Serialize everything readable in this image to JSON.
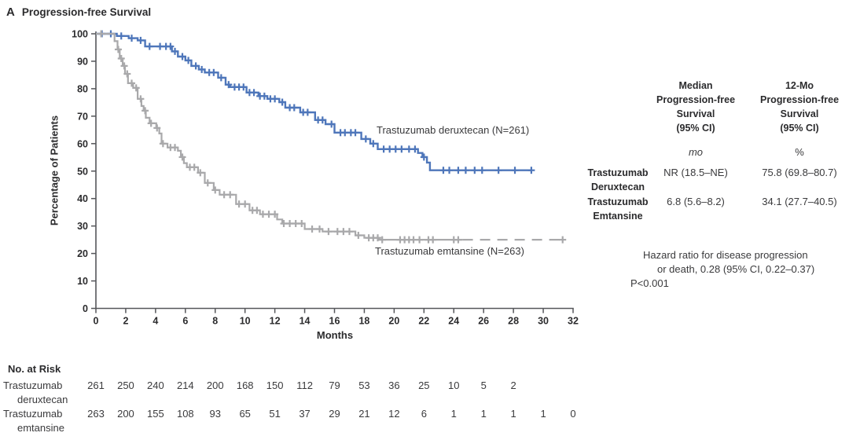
{
  "title": {
    "panel_letter": "A",
    "text": "Progression-free Survival"
  },
  "chart_data": {
    "type": "line",
    "subtype": "kaplan-meier-step",
    "title": "Progression-free Survival",
    "xlabel": "Months",
    "ylabel": "Percentage of Patients",
    "xlim": [
      0,
      32
    ],
    "ylim": [
      0,
      100
    ],
    "x_ticks": [
      0,
      2,
      4,
      6,
      8,
      10,
      12,
      14,
      16,
      18,
      20,
      22,
      24,
      26,
      28,
      30,
      32
    ],
    "y_ticks": [
      0,
      10,
      20,
      30,
      40,
      50,
      60,
      70,
      80,
      90,
      100
    ],
    "grid": false,
    "axis_color": "#55565a",
    "series": [
      {
        "name": "Trastuzumab deruxtecan",
        "label": "Trastuzumab deruxtecan (N=261)",
        "n": 261,
        "color": "#4e76ba",
        "dash_from": null,
        "steps": [
          [
            0,
            100
          ],
          [
            1.4,
            100
          ],
          [
            1.4,
            99.2
          ],
          [
            2.2,
            99.2
          ],
          [
            2.2,
            98.4
          ],
          [
            2.8,
            98.4
          ],
          [
            2.8,
            97.6
          ],
          [
            3.3,
            97.6
          ],
          [
            3.3,
            95.4
          ],
          [
            5.1,
            95.4
          ],
          [
            5.1,
            93.6
          ],
          [
            5.5,
            93.6
          ],
          [
            5.5,
            91.7
          ],
          [
            6,
            91.7
          ],
          [
            6,
            90.3
          ],
          [
            6.4,
            90.3
          ],
          [
            6.4,
            88.3
          ],
          [
            6.9,
            88.3
          ],
          [
            6.9,
            87
          ],
          [
            7.3,
            87
          ],
          [
            7.3,
            85.9
          ],
          [
            8.2,
            85.9
          ],
          [
            8.2,
            84
          ],
          [
            8.7,
            84
          ],
          [
            8.7,
            81.5
          ],
          [
            9,
            81.5
          ],
          [
            9,
            80.6
          ],
          [
            10.1,
            80.6
          ],
          [
            10.1,
            78.6
          ],
          [
            10.9,
            78.6
          ],
          [
            10.9,
            77.3
          ],
          [
            11.5,
            77.3
          ],
          [
            11.5,
            76.3
          ],
          [
            12.3,
            76.3
          ],
          [
            12.3,
            75.1
          ],
          [
            12.7,
            75.1
          ],
          [
            12.7,
            73.1
          ],
          [
            13.7,
            73.1
          ],
          [
            13.7,
            71.4
          ],
          [
            14.7,
            71.4
          ],
          [
            14.7,
            68.6
          ],
          [
            15.4,
            68.6
          ],
          [
            15.4,
            67.1
          ],
          [
            16,
            67.1
          ],
          [
            16,
            64
          ],
          [
            17.8,
            64
          ],
          [
            17.8,
            61.7
          ],
          [
            18.4,
            61.7
          ],
          [
            18.4,
            60
          ],
          [
            18.9,
            60
          ],
          [
            18.9,
            58
          ],
          [
            21.6,
            58
          ],
          [
            21.6,
            56.6
          ],
          [
            21.9,
            56.6
          ],
          [
            21.9,
            55.1
          ],
          [
            22.2,
            55.1
          ],
          [
            22.2,
            53.1
          ],
          [
            22.4,
            53.1
          ],
          [
            22.4,
            50.3
          ],
          [
            29.2,
            50.3
          ]
        ],
        "censors": [
          0.4,
          1,
          1.7,
          2.4,
          3,
          3.6,
          4.3,
          4.7,
          5,
          5.3,
          5.8,
          6.2,
          6.7,
          7.1,
          7.6,
          7.9,
          8.4,
          8.9,
          9.3,
          9.6,
          9.9,
          10.3,
          10.6,
          11,
          11.3,
          11.7,
          12,
          12.5,
          13,
          13.3,
          13.9,
          14.2,
          14.9,
          15.2,
          15.8,
          16.4,
          16.7,
          17.1,
          17.4,
          18.1,
          18.6,
          19.3,
          19.7,
          20.1,
          20.5,
          21,
          21.4,
          22,
          23.3,
          23.7,
          24.3,
          24.8,
          25.4,
          25.9,
          27,
          28.1,
          29.2
        ]
      },
      {
        "name": "Trastuzumab emtansine",
        "label": "Trastuzumab emtansine (N=263)",
        "n": 263,
        "color": "#a9a9ab",
        "dash_from": 24.6,
        "steps": [
          [
            0,
            100
          ],
          [
            1.25,
            100
          ],
          [
            1.25,
            97.3
          ],
          [
            1.45,
            97.3
          ],
          [
            1.45,
            94.3
          ],
          [
            1.6,
            94.3
          ],
          [
            1.6,
            91
          ],
          [
            1.8,
            91
          ],
          [
            1.8,
            88.3
          ],
          [
            1.95,
            88.3
          ],
          [
            1.95,
            85.4
          ],
          [
            2.15,
            85.4
          ],
          [
            2.15,
            82
          ],
          [
            2.5,
            82
          ],
          [
            2.5,
            80.3
          ],
          [
            2.8,
            80.3
          ],
          [
            2.8,
            76.3
          ],
          [
            3.05,
            76.3
          ],
          [
            3.05,
            73.7
          ],
          [
            3.2,
            73.7
          ],
          [
            3.2,
            72
          ],
          [
            3.35,
            72
          ],
          [
            3.35,
            69.4
          ],
          [
            3.6,
            69.4
          ],
          [
            3.6,
            67.4
          ],
          [
            4.05,
            67.4
          ],
          [
            4.05,
            65.7
          ],
          [
            4.25,
            65.7
          ],
          [
            4.25,
            63.7
          ],
          [
            4.4,
            63.7
          ],
          [
            4.4,
            60
          ],
          [
            4.8,
            60
          ],
          [
            4.8,
            58.6
          ],
          [
            5.5,
            58.6
          ],
          [
            5.5,
            57.4
          ],
          [
            5.7,
            57.4
          ],
          [
            5.7,
            55.1
          ],
          [
            5.9,
            55.1
          ],
          [
            5.9,
            52.9
          ],
          [
            6.1,
            52.9
          ],
          [
            6.1,
            51.4
          ],
          [
            6.85,
            51.4
          ],
          [
            6.85,
            49.4
          ],
          [
            7.3,
            49.4
          ],
          [
            7.3,
            45.7
          ],
          [
            7.9,
            45.7
          ],
          [
            7.9,
            43.1
          ],
          [
            8.3,
            43.1
          ],
          [
            8.3,
            41.4
          ],
          [
            9.4,
            41.4
          ],
          [
            9.4,
            38
          ],
          [
            10.3,
            38
          ],
          [
            10.3,
            35.7
          ],
          [
            11,
            35.7
          ],
          [
            11,
            34.3
          ],
          [
            12.15,
            34.3
          ],
          [
            12.15,
            32.4
          ],
          [
            12.5,
            32.4
          ],
          [
            12.5,
            30.9
          ],
          [
            14,
            30.9
          ],
          [
            14,
            28.9
          ],
          [
            15.2,
            28.9
          ],
          [
            15.2,
            28
          ],
          [
            17.4,
            28
          ],
          [
            17.4,
            26.6
          ],
          [
            18,
            26.6
          ],
          [
            18,
            25.7
          ],
          [
            19,
            25.7
          ],
          [
            19,
            25
          ],
          [
            31.3,
            25
          ]
        ],
        "censors": [
          0.35,
          1.5,
          1.7,
          1.9,
          2.1,
          2.4,
          2.7,
          3,
          3.3,
          3.7,
          4.1,
          4.5,
          5,
          5.3,
          5.8,
          6.3,
          6.6,
          7,
          7.5,
          8,
          8.6,
          9,
          9.6,
          10,
          10.5,
          10.8,
          11.2,
          11.6,
          12,
          12.6,
          13,
          13.4,
          13.8,
          14.5,
          15,
          15.6,
          16.2,
          16.6,
          17,
          17.6,
          18.3,
          18.6,
          18.9,
          19.2,
          20.4,
          20.7,
          21,
          21.3,
          21.7,
          22.3,
          22.6,
          24,
          24.3,
          31.3
        ]
      }
    ]
  },
  "summary_table": {
    "col1_header": [
      "Median",
      "Progression-free",
      "Survival",
      "(95% CI)"
    ],
    "col1_unit": "mo",
    "col2_header": [
      "12-Mo",
      "Progression-free",
      "Survival",
      "(95% CI)"
    ],
    "col2_unit": "%",
    "rows": [
      {
        "label_lines": [
          "Trastuzumab",
          "Deruxtecan"
        ],
        "median": "NR (18.5–NE)",
        "twelve_mo": "75.8 (69.8–80.7)"
      },
      {
        "label_lines": [
          "Trastuzumab",
          "Emtansine"
        ],
        "median": "6.8 (5.6–8.2)",
        "twelve_mo": "34.1 (27.7–40.5)"
      }
    ]
  },
  "annotations": {
    "hazard_line1": "Hazard ratio for disease progression",
    "hazard_line2": "or death, 0.28 (95% CI, 0.22–0.37)",
    "hazard_line3": "P<0.001"
  },
  "risk_table": {
    "title": "No. at Risk",
    "rows": [
      {
        "label_lines": [
          "Trastuzumab",
          "deruxtecan"
        ],
        "counts": [
          261,
          250,
          240,
          214,
          200,
          168,
          150,
          112,
          79,
          53,
          36,
          25,
          10,
          5,
          2
        ]
      },
      {
        "label_lines": [
          "Trastuzumab",
          "emtansine"
        ],
        "counts": [
          263,
          200,
          155,
          108,
          93,
          65,
          51,
          37,
          29,
          21,
          12,
          6,
          1,
          1,
          1,
          1,
          0
        ]
      }
    ]
  }
}
